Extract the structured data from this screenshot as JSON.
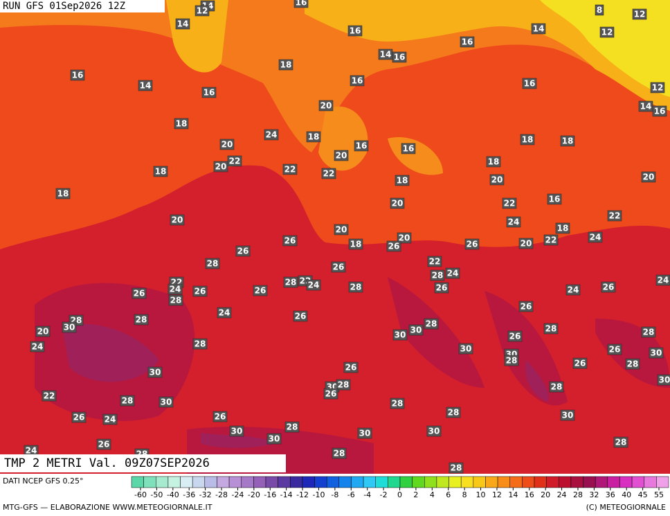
{
  "header": {
    "run": "RUN GFS 01Sep2026 12Z",
    "field": "TMP 2 METRI Val. 09Z07SEP2026"
  },
  "footer": {
    "source": "DATI NCEP GFS 0.25°",
    "credit": "MTG-GFS — ELABORAZIONE WWW.METEOGIORNALE.IT",
    "copyright": "(C) METEOGIORNALE"
  },
  "colorbar": {
    "ticks": [
      -60,
      -50,
      -40,
      -36,
      -32,
      -28,
      -24,
      -20,
      -16,
      -14,
      -12,
      -10,
      -8,
      -6,
      -4,
      -2,
      0,
      2,
      4,
      6,
      8,
      10,
      12,
      14,
      16,
      20,
      24,
      28,
      32,
      36,
      40,
      45,
      55
    ],
    "colors": [
      "#5ad6a8",
      "#7fe0bc",
      "#a6ead0",
      "#c6f2e2",
      "#d8eef4",
      "#c8d6ee",
      "#b8bce6",
      "#c4a8e0",
      "#b890d6",
      "#a678c8",
      "#9460b8",
      "#7a4aa8",
      "#5a3aa0",
      "#3a2aa0",
      "#1e28b8",
      "#1440d0",
      "#1060e0",
      "#1484ec",
      "#20a8f2",
      "#30c8f4",
      "#20dcd8",
      "#20d890",
      "#30d040",
      "#60d820",
      "#90e020",
      "#c0e820",
      "#e8f020",
      "#f8e020",
      "#f8c818",
      "#f8a818",
      "#f88c18",
      "#f46c18",
      "#ee4c18",
      "#e03018",
      "#d01c28",
      "#bc1030",
      "#a81040",
      "#981050",
      "#b01878",
      "#c820a0",
      "#d830c0",
      "#e050d0",
      "#e878dc",
      "#f0a0e8"
    ]
  },
  "map_labels": [
    14,
    12,
    16,
    8,
    12,
    14,
    16,
    14,
    12,
    14,
    16,
    16,
    18,
    16,
    14,
    16,
    16,
    16,
    12,
    14,
    16,
    20,
    18,
    24,
    18,
    20,
    20,
    16,
    16,
    18,
    18,
    22,
    20,
    18,
    22,
    22,
    18,
    20,
    18,
    18,
    20,
    20,
    22,
    16,
    20,
    22,
    24,
    18,
    20,
    26,
    18,
    20,
    26,
    26,
    20,
    22,
    24,
    26,
    28,
    26,
    22,
    24,
    28,
    22,
    24,
    26,
    28,
    22,
    24,
    28,
    26,
    26,
    26,
    24,
    24,
    26,
    28,
    24,
    26,
    26,
    28,
    30,
    28,
    20,
    28,
    30,
    30,
    28,
    28,
    26,
    24,
    28,
    30,
    26,
    30,
    30,
    28,
    28,
    26,
    26,
    30,
    30,
    30,
    28,
    26,
    28,
    22,
    28,
    30,
    28,
    28,
    26,
    24,
    26,
    30,
    28,
    30,
    30,
    30,
    30,
    26,
    28,
    24,
    28,
    28,
    28
  ]
}
